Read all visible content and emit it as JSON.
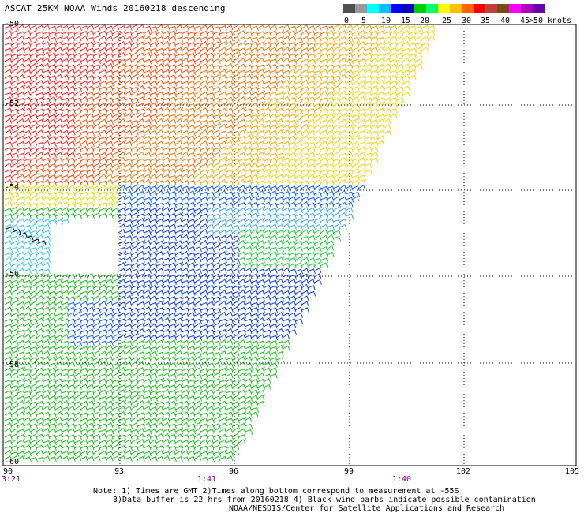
{
  "title": "ASCAT 25KM NOAA Winds 20160218 descending",
  "legend": {
    "colors": [
      "#505050",
      "#9a9a9a",
      "#00ffff",
      "#00bfff",
      "#0000ff",
      "#0000c0",
      "#00cc00",
      "#00ff66",
      "#ffff00",
      "#ffc000",
      "#ff6600",
      "#ff0000",
      "#c04040",
      "#7a4a10",
      "#ff00ff",
      "#b000c0",
      "#6a00aa"
    ],
    "labels": [
      "0",
      "5",
      "10",
      "15",
      "20",
      "25",
      "30",
      "35",
      "40",
      "45",
      ">50 knots"
    ]
  },
  "axes": {
    "lon_labels": [
      "90",
      "93",
      "96",
      "99",
      "102",
      "105"
    ],
    "lat_labels": [
      "-50",
      "-52",
      "-54",
      "-56",
      "-58",
      "-60"
    ]
  },
  "times": {
    "t1": "3:21",
    "t2": "1:41",
    "t3": "1:40"
  },
  "notes": {
    "line1": "Note: 1) Times are GMT 2)Times along bottom correspond to measurement at -55S",
    "line2": "3)Data buffer is 22 hrs from 20160218 4) Black wind barbs indicate possible contamination",
    "line3": "NOAA/NESDIS/Center for Satellite Applications and Research"
  }
}
